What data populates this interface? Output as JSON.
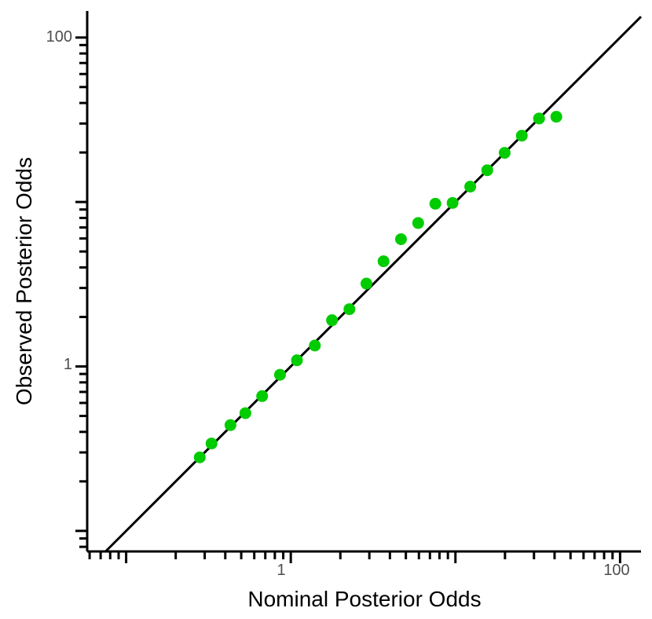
{
  "chart_data": {
    "type": "scatter",
    "title": "",
    "xlabel": "Nominal Posterior Odds",
    "ylabel": "Observed Posterior Odds",
    "x_scale": "log",
    "y_scale": "log",
    "xlim": [
      0.058,
      134
    ],
    "ylim": [
      0.075,
      145
    ],
    "x_tick_labels": [
      "1",
      "100"
    ],
    "y_tick_labels": [
      "100",
      "1"
    ],
    "grid": false,
    "legend": "none",
    "reference_line": "y = x",
    "point_color": "#00cc00",
    "line_color": "#000000",
    "series": [
      {
        "x": [
          0.28,
          0.33,
          0.43,
          0.53,
          0.67,
          0.86,
          1.09,
          1.4,
          1.78,
          2.27,
          2.88,
          3.66,
          4.67,
          5.94,
          7.55,
          9.61,
          12.3,
          15.6,
          19.9,
          25.3,
          32.2,
          41.0
        ],
        "y": [
          0.28,
          0.34,
          0.44,
          0.52,
          0.66,
          0.89,
          1.09,
          1.34,
          1.91,
          2.23,
          3.19,
          4.36,
          5.94,
          7.45,
          9.76,
          9.87,
          12.4,
          15.6,
          19.9,
          25.3,
          32.2,
          33.0
        ]
      }
    ]
  }
}
